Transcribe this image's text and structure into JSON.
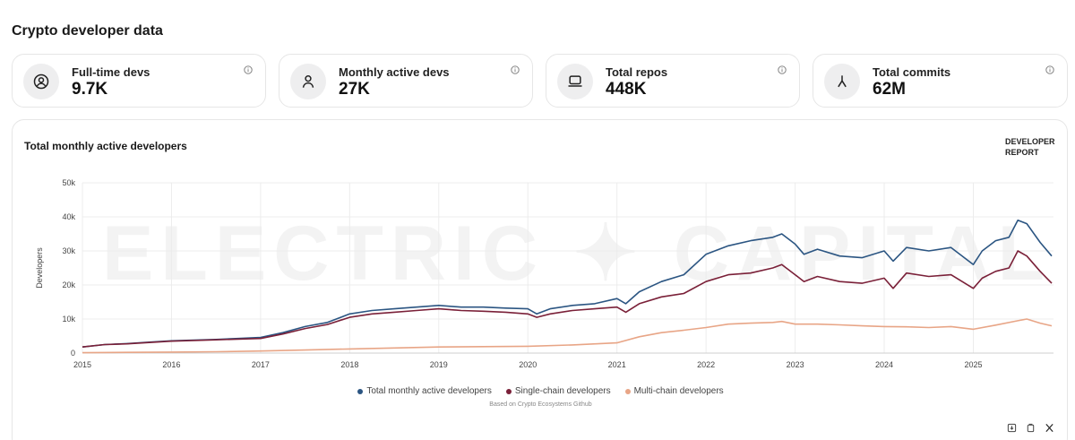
{
  "page": {
    "title": "Crypto developer data"
  },
  "stats": [
    {
      "label": "Full-time devs",
      "value": "9.7K",
      "icon": "user-circle-icon"
    },
    {
      "label": "Monthly active devs",
      "value": "27K",
      "icon": "user-icon"
    },
    {
      "label": "Total repos",
      "value": "448K",
      "icon": "laptop-icon"
    },
    {
      "label": "Total commits",
      "value": "62M",
      "icon": "git-merge-icon"
    }
  ],
  "chart": {
    "title": "Total monthly active developers",
    "report_link": "DEVELOPER REPORT",
    "watermark": "ELECTRIC ✦ CAPITAL",
    "source_note": "Based on Crypto Ecosystems Github",
    "tools": [
      "download-icon",
      "copy-icon",
      "x-share-icon"
    ]
  },
  "chart_data": {
    "type": "line",
    "ylabel": "Developers",
    "xlabel": "",
    "ylim": [
      0,
      50000
    ],
    "xlim": [
      2015,
      2025.9
    ],
    "y_ticks": [
      0,
      10000,
      20000,
      30000,
      40000,
      50000
    ],
    "y_tick_labels": [
      "0",
      "10k",
      "20k",
      "30k",
      "40k",
      "50k"
    ],
    "x_ticks": [
      2015,
      2016,
      2017,
      2018,
      2019,
      2020,
      2021,
      2022,
      2023,
      2024,
      2025
    ],
    "x_tick_labels": [
      "2015",
      "2016",
      "2017",
      "2018",
      "2019",
      "2020",
      "2021",
      "2022",
      "2023",
      "2024",
      "2025"
    ],
    "grid": true,
    "legend_position": "bottom",
    "series": [
      {
        "name": "Total monthly active developers",
        "color": "#2b5582",
        "x": [
          2015,
          2015.25,
          2015.5,
          2015.75,
          2016,
          2016.25,
          2016.5,
          2016.75,
          2017,
          2017.25,
          2017.5,
          2017.75,
          2018,
          2018.25,
          2018.5,
          2018.75,
          2019,
          2019.25,
          2019.5,
          2019.75,
          2020,
          2020.1,
          2020.25,
          2020.5,
          2020.75,
          2021,
          2021.1,
          2021.25,
          2021.5,
          2021.75,
          2022,
          2022.25,
          2022.5,
          2022.75,
          2022.85,
          2023,
          2023.1,
          2023.25,
          2023.5,
          2023.75,
          2024,
          2024.1,
          2024.25,
          2024.5,
          2024.75,
          2025,
          2025.1,
          2025.25,
          2025.4,
          2025.5,
          2025.6,
          2025.75,
          2025.88
        ],
        "y": [
          1800,
          2500,
          2800,
          3200,
          3600,
          3800,
          4000,
          4300,
          4600,
          6000,
          7800,
          9000,
          11500,
          12500,
          13000,
          13500,
          14000,
          13500,
          13500,
          13200,
          13000,
          11500,
          13000,
          14000,
          14500,
          16000,
          14500,
          18000,
          21000,
          23000,
          29000,
          31500,
          33000,
          34000,
          35000,
          32000,
          29000,
          30500,
          28500,
          28000,
          30000,
          27000,
          31000,
          30000,
          31000,
          26000,
          30000,
          33000,
          34000,
          39000,
          38000,
          32500,
          28500
        ]
      },
      {
        "name": "Single-chain developers",
        "color": "#7a2038",
        "x": [
          2015,
          2015.25,
          2015.5,
          2015.75,
          2016,
          2016.25,
          2016.5,
          2016.75,
          2017,
          2017.25,
          2017.5,
          2017.75,
          2018,
          2018.25,
          2018.5,
          2018.75,
          2019,
          2019.25,
          2019.5,
          2019.75,
          2020,
          2020.1,
          2020.25,
          2020.5,
          2020.75,
          2021,
          2021.1,
          2021.25,
          2021.5,
          2021.75,
          2022,
          2022.25,
          2022.5,
          2022.75,
          2022.85,
          2023,
          2023.1,
          2023.25,
          2023.5,
          2023.75,
          2024,
          2024.1,
          2024.25,
          2024.5,
          2024.75,
          2025,
          2025.1,
          2025.25,
          2025.4,
          2025.5,
          2025.6,
          2025.75,
          2025.88
        ],
        "y": [
          1800,
          2500,
          2700,
          3100,
          3500,
          3700,
          3900,
          4100,
          4300,
          5600,
          7200,
          8400,
          10500,
          11500,
          12000,
          12500,
          13000,
          12500,
          12300,
          12000,
          11500,
          10500,
          11500,
          12500,
          13000,
          13500,
          12000,
          14500,
          16500,
          17500,
          21000,
          23000,
          23500,
          25000,
          26000,
          23000,
          21000,
          22500,
          21000,
          20500,
          22000,
          19000,
          23500,
          22500,
          23000,
          19000,
          22000,
          24000,
          25000,
          30000,
          28500,
          24000,
          20500
        ]
      },
      {
        "name": "Multi-chain developers",
        "color": "#e8a586",
        "x": [
          2015,
          2015.5,
          2016,
          2016.5,
          2017,
          2017.5,
          2018,
          2018.5,
          2019,
          2019.5,
          2020,
          2020.5,
          2021,
          2021.25,
          2021.5,
          2021.75,
          2022,
          2022.25,
          2022.5,
          2022.75,
          2022.85,
          2023,
          2023.25,
          2023.5,
          2023.75,
          2024,
          2024.25,
          2024.5,
          2024.75,
          2025,
          2025.25,
          2025.5,
          2025.6,
          2025.75,
          2025.88
        ],
        "y": [
          100,
          200,
          300,
          400,
          600,
          900,
          1200,
          1500,
          1800,
          1900,
          2000,
          2400,
          3000,
          4800,
          6000,
          6700,
          7500,
          8500,
          8800,
          9000,
          9300,
          8500,
          8500,
          8300,
          8000,
          7800,
          7700,
          7500,
          7800,
          7000,
          8200,
          9500,
          10000,
          8800,
          8000
        ]
      }
    ]
  }
}
